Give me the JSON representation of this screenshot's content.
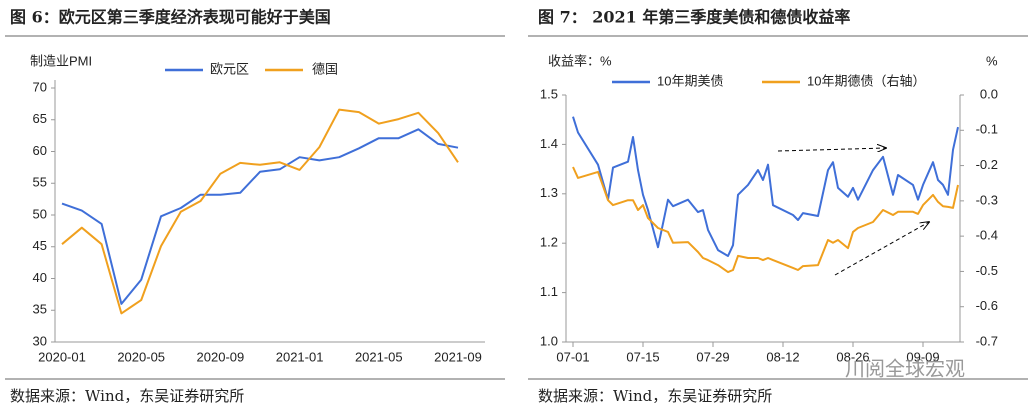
{
  "chart_data": [
    {
      "type": "line",
      "title": "图 6：欧元区第三季度经济表现可能好于美国",
      "ylabel": "制造业PMI",
      "categories": [
        "2020-01",
        null,
        null,
        null,
        "2020-05",
        null,
        null,
        null,
        "2020-09",
        null,
        null,
        null,
        "2021-01",
        null,
        null,
        null,
        "2021-05",
        null,
        null,
        null,
        "2021-09"
      ],
      "series": [
        {
          "name": "欧元区",
          "color": "#3f6fd8",
          "values": [
            51.8,
            50.7,
            48.6,
            36,
            39.8,
            49.8,
            51.1,
            53.2,
            53.2,
            53.5,
            56.8,
            57.2,
            59.1,
            58.6,
            59.1,
            60.5,
            62.1,
            62.1,
            63.5,
            61.2,
            60.6
          ]
        },
        {
          "name": "德国",
          "color": "#f0a01e",
          "values": [
            45.4,
            48,
            45.4,
            34.5,
            36.6,
            45.1,
            50.5,
            52.2,
            56.5,
            58.2,
            57.9,
            58.3,
            57.1,
            60.7,
            66.6,
            66.2,
            64.4,
            65.1,
            66.1,
            62.9,
            58.3
          ]
        }
      ],
      "ylim": [
        30,
        70
      ],
      "yticks": [
        30,
        35,
        40,
        45,
        50,
        55,
        60,
        65,
        70
      ],
      "source": "数据来源：Wind，东吴证券研究所"
    },
    {
      "type": "line",
      "title": "图 7： 2021 年第三季度美债和德债收益率",
      "ylabel": "收益率：%",
      "y2label": "%",
      "x": [
        "07-01",
        "07-02",
        "07-06",
        "07-08",
        "07-09",
        "07-12",
        "07-13",
        "07-14",
        "07-15",
        "07-16",
        "07-18",
        "07-20",
        "07-21",
        "07-24",
        "07-26",
        "07-27",
        "07-28",
        "07-30",
        "08-01",
        "08-02",
        "08-03",
        "08-05",
        "08-07",
        "08-08",
        "08-09",
        "08-10",
        "08-14",
        "08-15",
        "08-16",
        "08-19",
        "08-21",
        "08-22",
        "08-23",
        "08-25",
        "08-26",
        "08-27",
        "08-30",
        "09-01",
        "09-03",
        "09-04",
        "09-07",
        "09-08",
        "09-09",
        "09-11",
        "09-12",
        "09-13",
        "09-14",
        "09-15",
        "09-16"
      ],
      "xlim": [
        "07-01",
        "09-16"
      ],
      "xticks": [
        "07-01",
        "07-15",
        "07-29",
        "08-12",
        "08-26",
        "09-09"
      ],
      "series": [
        {
          "name": "10年期美债",
          "color": "#3f6fd8",
          "values": [
            1.456,
            1.424,
            1.359,
            1.288,
            1.353,
            1.365,
            1.415,
            1.348,
            1.298,
            1.267,
            1.192,
            1.288,
            1.275,
            1.288,
            1.263,
            1.267,
            1.227,
            1.186,
            1.174,
            1.196,
            1.298,
            1.318,
            1.348,
            1.328,
            1.359,
            1.277,
            1.257,
            1.247,
            1.261,
            1.255,
            1.348,
            1.364,
            1.312,
            1.294,
            1.312,
            1.288,
            1.348,
            1.375,
            1.298,
            1.338,
            1.318,
            1.288,
            1.318,
            1.364,
            1.328,
            1.318,
            1.298,
            1.389,
            1.435
          ]
        },
        {
          "name": "10年期德债（右轴）",
          "color": "#f0a01e",
          "axis": "y2",
          "values": [
            -0.204,
            -0.235,
            -0.218,
            -0.298,
            -0.312,
            -0.298,
            -0.298,
            -0.326,
            -0.312,
            -0.349,
            -0.377,
            -0.388,
            -0.419,
            -0.417,
            -0.445,
            -0.462,
            -0.468,
            -0.482,
            -0.502,
            -0.496,
            -0.456,
            -0.462,
            -0.462,
            -0.468,
            -0.462,
            -0.468,
            -0.49,
            -0.496,
            -0.485,
            -0.482,
            -0.411,
            -0.419,
            -0.411,
            -0.434,
            -0.388,
            -0.377,
            -0.36,
            -0.326,
            -0.34,
            -0.331,
            -0.331,
            -0.337,
            -0.312,
            -0.283,
            -0.303,
            -0.315,
            -0.317,
            -0.32,
            -0.255
          ]
        }
      ],
      "ylim": [
        1,
        1.5
      ],
      "yticks": [
        {
          "value": 1,
          "label": "1.0"
        },
        1.1,
        1.2,
        1.3,
        1.4,
        1.5
      ],
      "y2lim": [
        -0.7,
        0
      ],
      "y2ticks": [
        -0.7,
        -0.6,
        -0.5,
        -0.4,
        -0.3,
        -0.2,
        -0.1,
        {
          "value": 0,
          "label": "0.0"
        }
      ],
      "source": "数据来源：Wind，东吴证券研究所"
    }
  ],
  "watermark": "川阅全球宏观"
}
